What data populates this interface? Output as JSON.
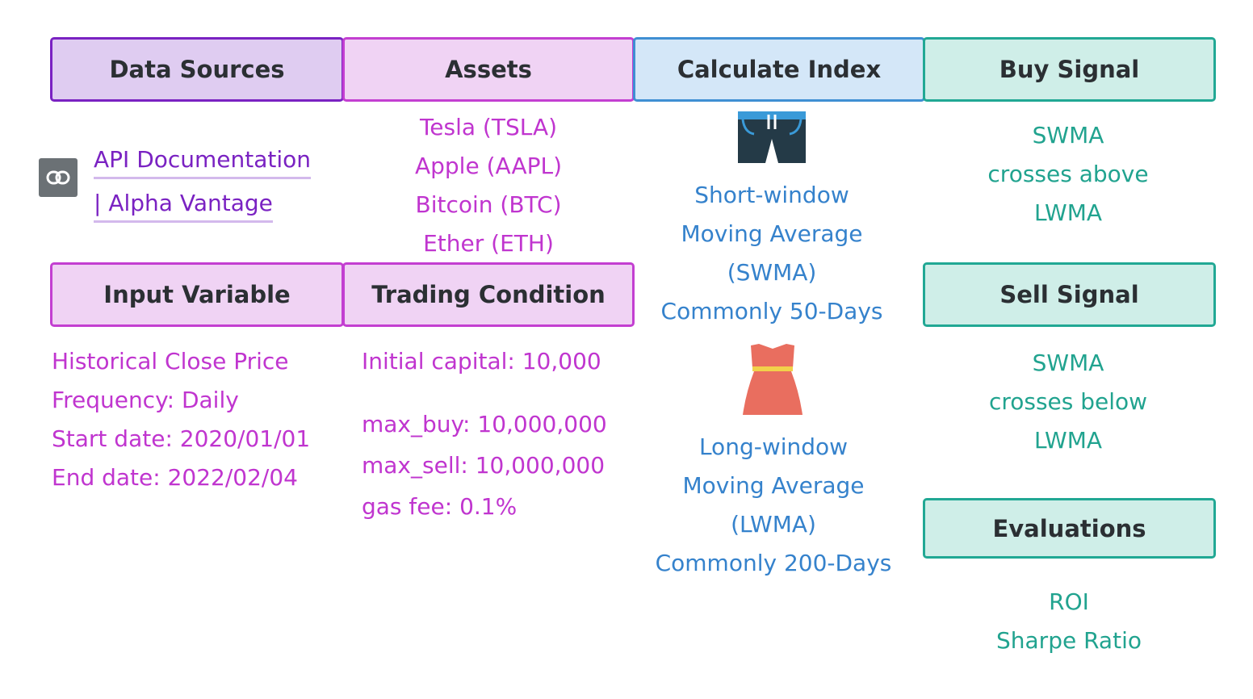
{
  "headers": {
    "data_sources": "Data Sources",
    "assets": "Assets",
    "calculate_index": "Calculate Index",
    "buy_signal": "Buy Signal",
    "input_variable": "Input Variable",
    "trading_condition": "Trading Condition",
    "sell_signal": "Sell Signal",
    "evaluations": "Evaluations"
  },
  "data_source_link": {
    "line1": "API Documentation",
    "line2": "| Alpha Vantage"
  },
  "assets": [
    "Tesla (TSLA)",
    "Apple (AAPL)",
    "Bitcoin (BTC)",
    "Ether (ETH)"
  ],
  "input_variable": [
    "Historical Close Price",
    "Frequency: Daily",
    "Start date: 2020/01/01",
    "End date: 2022/02/04"
  ],
  "trading_condition": {
    "initial_capital": "Initial capital: 10,000",
    "lines": [
      "max_buy: 10,000,000",
      "max_sell: 10,000,000",
      "gas fee: 0.1%"
    ]
  },
  "short_window": [
    "Short-window",
    "Moving Average",
    "(SWMA)",
    "Commonly 50-Days"
  ],
  "long_window": [
    "Long-window",
    "Moving Average",
    "(LWMA)",
    "Commonly 200-Days"
  ],
  "buy_signal": [
    "SWMA",
    "crosses above",
    "LWMA"
  ],
  "sell_signal": [
    "SWMA",
    "crosses below",
    "LWMA"
  ],
  "evaluations": [
    "ROI",
    "Sharpe Ratio"
  ],
  "icons": {
    "link": "link-icon",
    "shorts": "shorts-icon",
    "dress": "dress-icon"
  },
  "colors": {
    "purple": "#7a22c2",
    "magenta": "#c035cf",
    "blue": "#3582cc",
    "teal": "#21a38f"
  }
}
